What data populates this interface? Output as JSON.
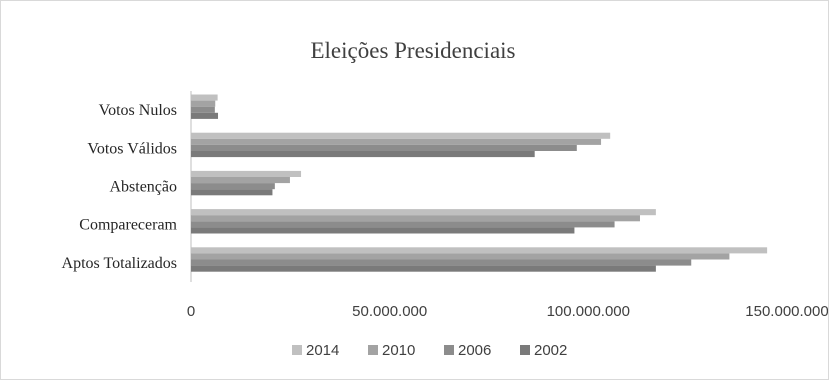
{
  "chart_data": {
    "type": "bar",
    "orientation": "horizontal",
    "title": "Eleições Presidenciais",
    "xlabel": "",
    "ylabel": "",
    "categories": [
      "Votos Nulos",
      "Votos Válidos",
      "Abstenção",
      "Compareceram",
      "Aptos Totalizados"
    ],
    "series": [
      {
        "name": "2014",
        "color": "#c0c0c0",
        "values": [
          6700000,
          105500000,
          27700000,
          117000000,
          145000000
        ]
      },
      {
        "name": "2010",
        "color": "#a3a3a3",
        "values": [
          6100000,
          103200000,
          24900000,
          113000000,
          135500000
        ]
      },
      {
        "name": "2006",
        "color": "#8c8c8c",
        "values": [
          6000000,
          97100000,
          21100000,
          106600000,
          125900000
        ]
      },
      {
        "name": "2002",
        "color": "#7a7a7a",
        "values": [
          6800000,
          86500000,
          20500000,
          96500000,
          117000000
        ]
      }
    ],
    "xlim": [
      0,
      150000000
    ],
    "x_ticks": [
      0,
      50000000,
      100000000,
      150000000
    ],
    "x_tick_labels": [
      "0",
      "50.000.000",
      "100.000.000",
      "150.000.000"
    ],
    "grid": false,
    "legend_position": "bottom"
  }
}
